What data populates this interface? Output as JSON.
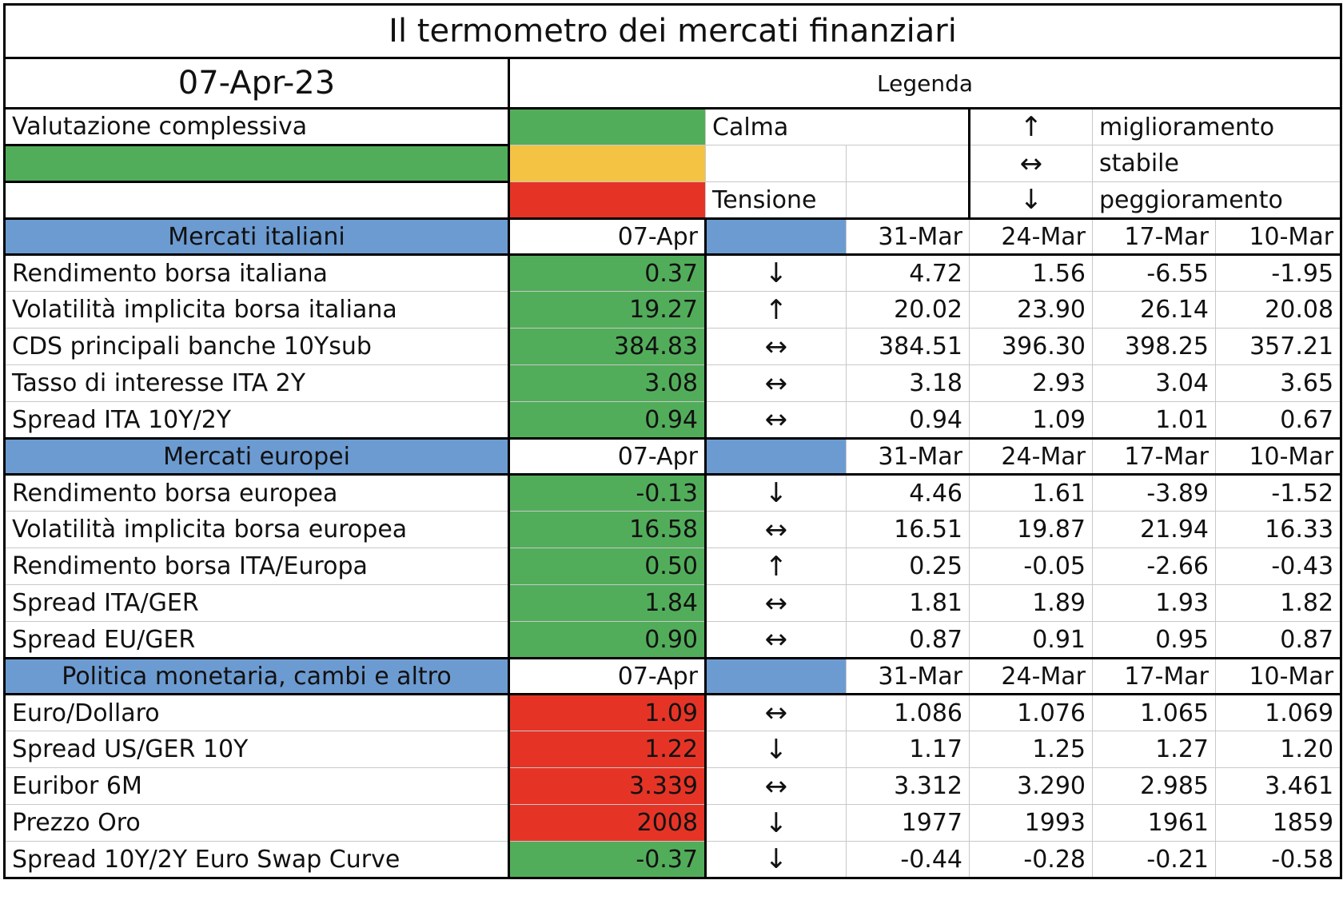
{
  "title": "Il termometro dei mercati finanziari",
  "date": "07-Apr-23",
  "legend": {
    "title": "Legenda",
    "calm": "Calma",
    "tension": "Tensione",
    "improve_arrow": "↑",
    "improve": "miglioramento",
    "stable_arrow": "↔",
    "stable": "stabile",
    "worsen_arrow": "↓",
    "worsen": "peggioramento"
  },
  "overall_label": "Valutazione complessiva",
  "colors": {
    "green": "#52ad5a",
    "amber": "#f5c343",
    "red": "#e53426",
    "blue": "#6c9bd1"
  },
  "sections": [
    {
      "name": "Mercati italiani",
      "current": "07-Apr",
      "dates": [
        "31-Mar",
        "24-Mar",
        "17-Mar",
        "10-Mar"
      ],
      "rows": [
        {
          "label": "Rendimento borsa italiana",
          "value": "0.37",
          "status": "green",
          "arrow": "↓",
          "history": [
            "4.72",
            "1.56",
            "-6.55",
            "-1.95"
          ]
        },
        {
          "label": "Volatilità implicita borsa italiana",
          "value": "19.27",
          "status": "green",
          "arrow": "↑",
          "history": [
            "20.02",
            "23.90",
            "26.14",
            "20.08"
          ]
        },
        {
          "label": "CDS principali banche 10Ysub",
          "value": "384.83",
          "status": "green",
          "arrow": "↔",
          "history": [
            "384.51",
            "396.30",
            "398.25",
            "357.21"
          ]
        },
        {
          "label": "Tasso di interesse ITA 2Y",
          "value": "3.08",
          "status": "green",
          "arrow": "↔",
          "history": [
            "3.18",
            "2.93",
            "3.04",
            "3.65"
          ]
        },
        {
          "label": "Spread ITA 10Y/2Y",
          "value": "0.94",
          "status": "green",
          "arrow": "↔",
          "history": [
            "0.94",
            "1.09",
            "1.01",
            "0.67"
          ]
        }
      ]
    },
    {
      "name": "Mercati europei",
      "current": "07-Apr",
      "dates": [
        "31-Mar",
        "24-Mar",
        "17-Mar",
        "10-Mar"
      ],
      "rows": [
        {
          "label": "Rendimento borsa europea",
          "value": "-0.13",
          "status": "green",
          "arrow": "↓",
          "history": [
            "4.46",
            "1.61",
            "-3.89",
            "-1.52"
          ]
        },
        {
          "label": "Volatilità implicita borsa europea",
          "value": "16.58",
          "status": "green",
          "arrow": "↔",
          "history": [
            "16.51",
            "19.87",
            "21.94",
            "16.33"
          ]
        },
        {
          "label": "Rendimento borsa ITA/Europa",
          "value": "0.50",
          "status": "green",
          "arrow": "↑",
          "history": [
            "0.25",
            "-0.05",
            "-2.66",
            "-0.43"
          ]
        },
        {
          "label": "Spread ITA/GER",
          "value": "1.84",
          "status": "green",
          "arrow": "↔",
          "history": [
            "1.81",
            "1.89",
            "1.93",
            "1.82"
          ]
        },
        {
          "label": "Spread EU/GER",
          "value": "0.90",
          "status": "green",
          "arrow": "↔",
          "history": [
            "0.87",
            "0.91",
            "0.95",
            "0.87"
          ]
        }
      ]
    },
    {
      "name": "Politica monetaria, cambi e altro",
      "current": "07-Apr",
      "dates": [
        "31-Mar",
        "24-Mar",
        "17-Mar",
        "10-Mar"
      ],
      "rows": [
        {
          "label": "Euro/Dollaro",
          "value": "1.09",
          "status": "red",
          "arrow": "↔",
          "history": [
            "1.086",
            "1.076",
            "1.065",
            "1.069"
          ]
        },
        {
          "label": "Spread US/GER 10Y",
          "value": "1.22",
          "status": "red",
          "arrow": "↓",
          "history": [
            "1.17",
            "1.25",
            "1.27",
            "1.20"
          ]
        },
        {
          "label": "Euribor 6M",
          "value": "3.339",
          "status": "red",
          "arrow": "↔",
          "history": [
            "3.312",
            "3.290",
            "2.985",
            "3.461"
          ]
        },
        {
          "label": "Prezzo Oro",
          "value": "2008",
          "status": "red",
          "arrow": "↓",
          "history": [
            "1977",
            "1993",
            "1961",
            "1859"
          ]
        },
        {
          "label": "Spread 10Y/2Y Euro Swap Curve",
          "value": "-0.37",
          "status": "green",
          "arrow": "↓",
          "history": [
            "-0.44",
            "-0.28",
            "-0.21",
            "-0.58"
          ]
        }
      ]
    }
  ]
}
